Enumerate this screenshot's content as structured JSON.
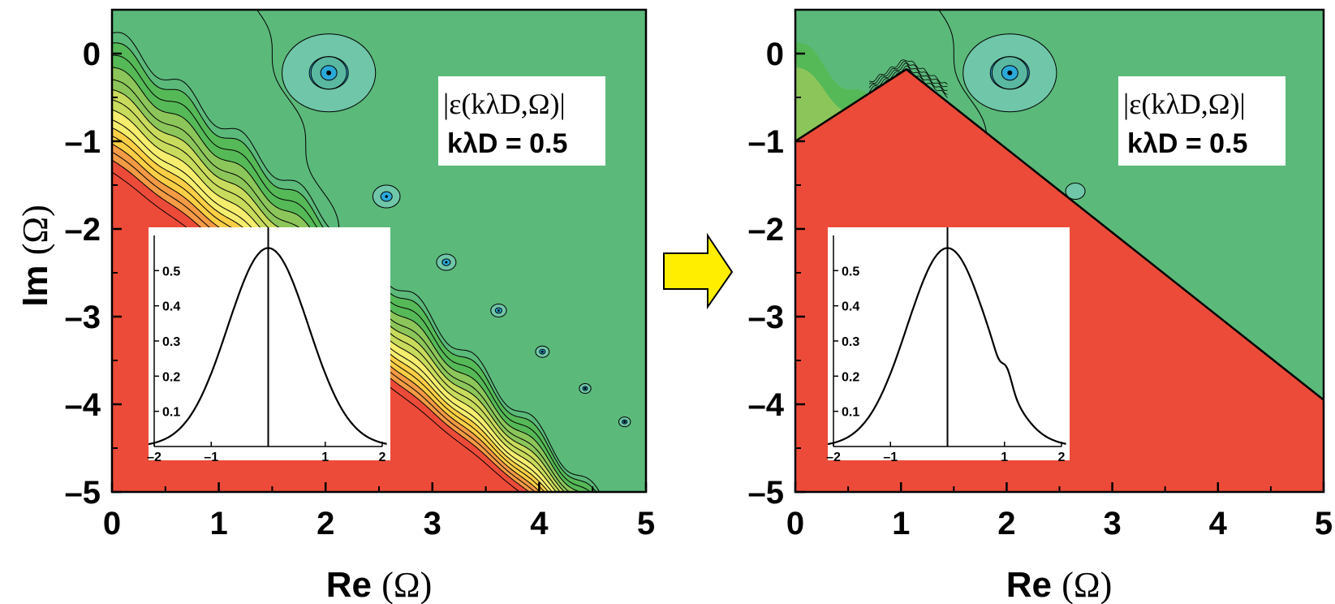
{
  "chart_data": [
    {
      "type": "heatmap",
      "panel": "left",
      "title": "",
      "xlabel": "Re",
      "ylabel": "Im",
      "axis_symbol": "(Ω)",
      "xlim": [
        0,
        5
      ],
      "ylim": [
        -5,
        0.5
      ],
      "x_ticks": [
        "0",
        "1",
        "2",
        "3",
        "4",
        "5"
      ],
      "y_ticks": [
        "0",
        "–1",
        "–2",
        "–3",
        "–4",
        "–5"
      ],
      "annotation": {
        "line1": "|ε(kλD,Ω)|",
        "line2": "kλD = 0.5"
      },
      "poles": [
        {
          "re": 2.03,
          "im": -0.22
        },
        {
          "re": 2.57,
          "im": -1.63
        },
        {
          "re": 3.13,
          "im": -2.38
        },
        {
          "re": 3.62,
          "im": -2.93
        },
        {
          "re": 4.03,
          "im": -3.4
        },
        {
          "re": 4.43,
          "im": -3.82
        },
        {
          "re": 4.8,
          "im": -4.2
        }
      ],
      "colors": {
        "background": "#5bb97a",
        "band_1": "#56b957",
        "band_2": "#8cc65a",
        "band_3": "#c8db5c",
        "band_4": "#f4ed6e",
        "band_5": "#fccf46",
        "band_6": "#f59a45",
        "region_low": "#ed4b39",
        "pole": "#6fc6a8",
        "pole_core": "#2aa9d8"
      },
      "inset": {
        "type": "line",
        "xlim": [
          -2,
          2
        ],
        "ylim": [
          0,
          0.6
        ],
        "x_ticks": [
          "–2",
          "–1",
          "1",
          "2"
        ],
        "y_ticks": [
          "0.1",
          "0.2",
          "0.3",
          "0.4",
          "0.5"
        ],
        "curve": "maxwellian",
        "peak": 0.564
      }
    },
    {
      "type": "heatmap",
      "panel": "right",
      "title": "",
      "xlabel": "Re",
      "ylabel": "",
      "axis_symbol": "(Ω)",
      "xlim": [
        0,
        5
      ],
      "ylim": [
        -5,
        0.5
      ],
      "x_ticks": [
        "0",
        "1",
        "2",
        "3",
        "4",
        "5"
      ],
      "y_ticks": [
        "0",
        "–1",
        "–2",
        "–3",
        "–4",
        "–5"
      ],
      "annotation": {
        "line1": "|ε(kλD,Ω)|",
        "line2": "kλD = 0.5"
      },
      "poles": [
        {
          "re": 2.03,
          "im": -0.22
        }
      ],
      "boundary": [
        {
          "re": 0,
          "im": -1.0
        },
        {
          "re": 1.05,
          "im": -0.18
        },
        {
          "re": 5.0,
          "im": -3.95
        }
      ],
      "inset": {
        "type": "line",
        "xlim": [
          -2,
          2
        ],
        "ylim": [
          0,
          0.6
        ],
        "x_ticks": [
          "–2",
          "–1",
          "1",
          "2"
        ],
        "y_ticks": [
          "0.1",
          "0.2",
          "0.3",
          "0.4",
          "0.5"
        ],
        "curve": "maxwellian-with-bump",
        "peak": 0.564
      }
    }
  ]
}
